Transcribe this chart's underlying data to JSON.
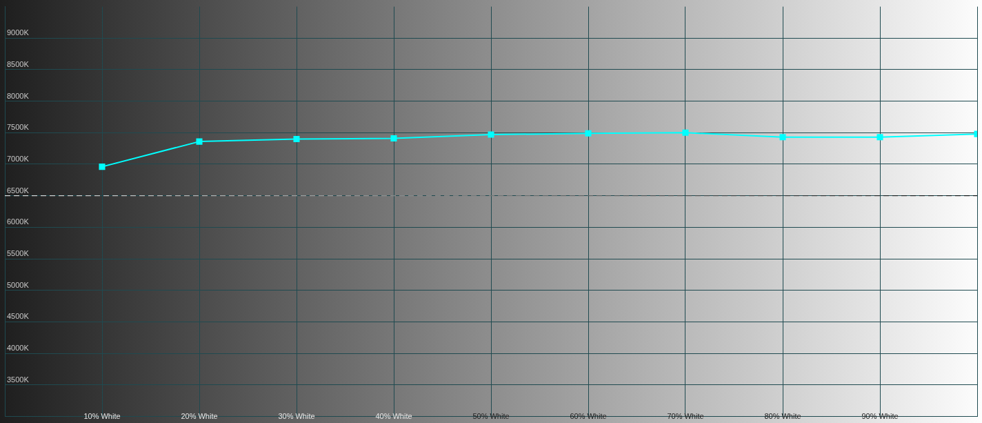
{
  "chart_data": {
    "type": "line",
    "x": [
      10,
      20,
      30,
      40,
      50,
      60,
      70,
      80,
      90,
      100
    ],
    "series": [
      {
        "color": "#00ffff",
        "values": [
          6960,
          7360,
          7400,
          7410,
          7470,
          7490,
          7500,
          7430,
          7430,
          7480
        ]
      }
    ],
    "xlim": [
      0,
      100
    ],
    "xticks": [
      {
        "value": 10,
        "label": "10% White"
      },
      {
        "value": 20,
        "label": "20% White"
      },
      {
        "value": 30,
        "label": "30% White"
      },
      {
        "value": 40,
        "label": "40% White"
      },
      {
        "value": 50,
        "label": "50% White"
      },
      {
        "value": 60,
        "label": "60% White"
      },
      {
        "value": 70,
        "label": "70% White"
      },
      {
        "value": 80,
        "label": "80% White"
      },
      {
        "value": 90,
        "label": "90% White"
      },
      {
        "value": 100,
        "label": null
      }
    ],
    "ylim": [
      3000,
      9500
    ],
    "yticks": [
      {
        "value": 3500,
        "label": "3500K"
      },
      {
        "value": 4000,
        "label": "4000K"
      },
      {
        "value": 4500,
        "label": "4500K"
      },
      {
        "value": 5000,
        "label": "5000K"
      },
      {
        "value": 5500,
        "label": "5500K"
      },
      {
        "value": 6000,
        "label": "6000K"
      },
      {
        "value": 6500,
        "label": "6500K"
      },
      {
        "value": 7000,
        "label": "7000K"
      },
      {
        "value": 7500,
        "label": "7500K"
      },
      {
        "value": 8000,
        "label": "8000K"
      },
      {
        "value": 8500,
        "label": "8500K"
      },
      {
        "value": 9000,
        "label": "9000K"
      }
    ],
    "grid": true,
    "marker": "square",
    "ref_lines": [
      {
        "axis": "y",
        "value": 6500,
        "line_style": "dashed"
      }
    ]
  }
}
